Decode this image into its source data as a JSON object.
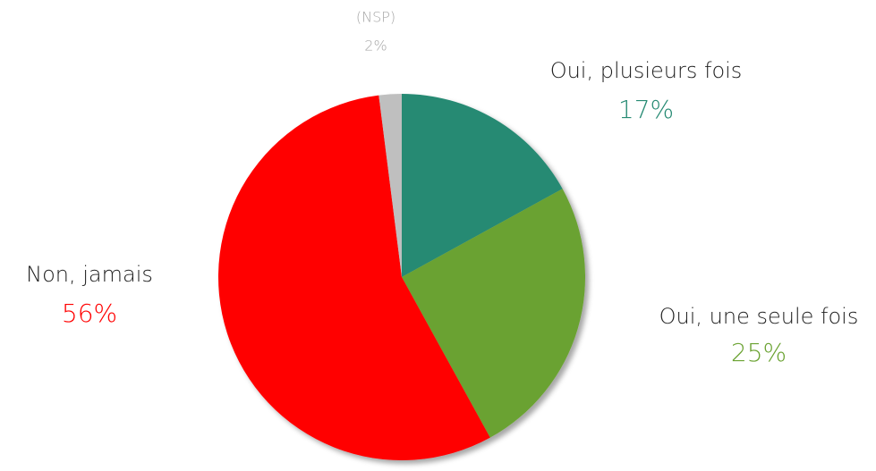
{
  "chart_data": {
    "type": "pie",
    "categories": [
      "Oui, plusieurs fois",
      "Oui, une seule fois",
      "Non, jamais",
      "(NSP)"
    ],
    "values": [
      17,
      25,
      56,
      2
    ],
    "value_labels": [
      "17%",
      "25%",
      "56%",
      "2%"
    ],
    "colors": [
      "#268a73",
      "#6aa231",
      "#ff0000",
      "#bfbfbf"
    ]
  }
}
